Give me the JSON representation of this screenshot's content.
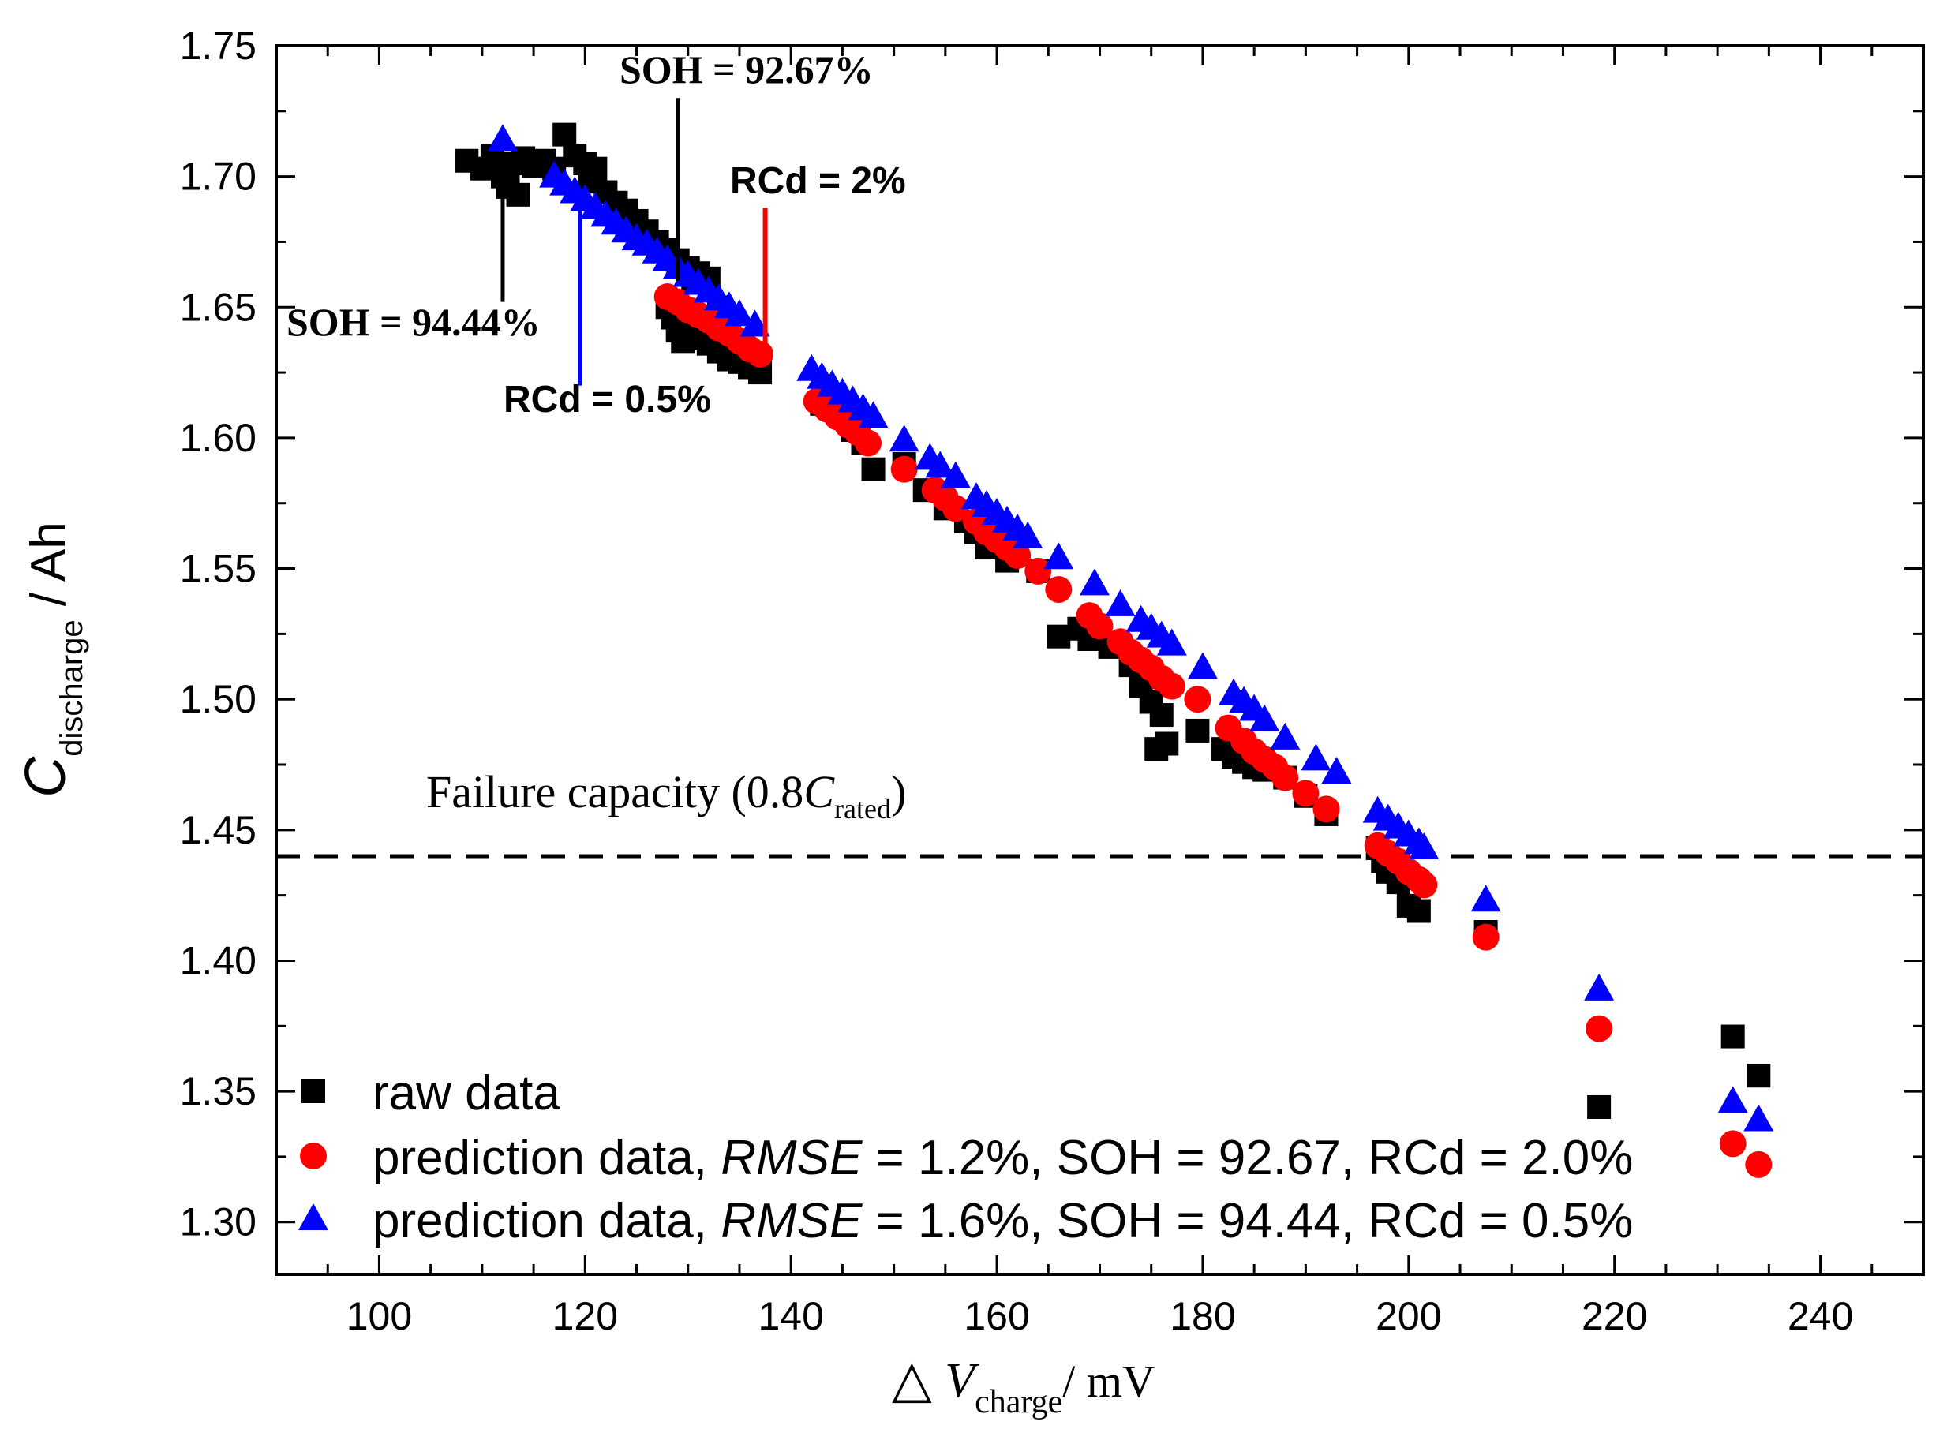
{
  "chart_data": {
    "type": "scatter",
    "xlabel": {
      "prefix": "△",
      "var": "V",
      "sub": "charge",
      "unit": "/  mV"
    },
    "ylabel": {
      "var": "C",
      "sub": "discharge",
      "unit": "/ Ah"
    },
    "xlim": [
      90,
      250
    ],
    "ylim": [
      1.28,
      1.75
    ],
    "xticks": [
      "100",
      "120",
      "140",
      "160",
      "180",
      "200",
      "220",
      "240"
    ],
    "yticks": [
      "1.30",
      "1.35",
      "1.40",
      "1.45",
      "1.50",
      "1.55",
      "1.60",
      "1.65",
      "1.70",
      "1.75"
    ],
    "threshold": {
      "y": 1.44,
      "label_pre": "Failure capacity (0.8",
      "label_var": "C",
      "label_sub": "rated",
      "label_post": ")"
    },
    "series": [
      {
        "name": "raw data",
        "marker": "square",
        "color": "#000000",
        "points": [
          [
            108.5,
            1.706
          ],
          [
            110,
            1.703
          ],
          [
            111,
            1.708
          ],
          [
            112,
            1.7
          ],
          [
            112.5,
            1.696
          ],
          [
            113,
            1.705
          ],
          [
            113.5,
            1.693
          ],
          [
            114,
            1.707
          ],
          [
            115,
            1.704
          ],
          [
            116,
            1.706
          ],
          [
            117,
            1.703
          ],
          [
            118,
            1.716
          ],
          [
            119,
            1.708
          ],
          [
            120,
            1.705
          ],
          [
            120.5,
            1.698
          ],
          [
            121,
            1.703
          ],
          [
            122,
            1.694
          ],
          [
            123,
            1.69
          ],
          [
            124,
            1.687
          ],
          [
            125,
            1.683
          ],
          [
            126,
            1.679
          ],
          [
            127,
            1.675
          ],
          [
            128,
            1.672
          ],
          [
            129,
            1.668
          ],
          [
            130,
            1.665
          ],
          [
            130.5,
            1.66
          ],
          [
            131,
            1.663
          ],
          [
            132,
            1.661
          ],
          [
            133,
            1.65
          ],
          [
            134,
            1.643
          ],
          [
            135,
            1.635
          ],
          [
            136,
            1.628
          ],
          [
            137,
            1.625
          ],
          [
            128,
            1.65
          ],
          [
            128.5,
            1.646
          ],
          [
            129,
            1.641
          ],
          [
            129.5,
            1.637
          ],
          [
            130.5,
            1.64
          ],
          [
            131,
            1.638
          ],
          [
            132,
            1.636
          ],
          [
            133,
            1.633
          ],
          [
            134,
            1.63
          ],
          [
            135,
            1.629
          ],
          [
            136,
            1.627
          ],
          [
            143,
            1.613
          ],
          [
            145,
            1.608
          ],
          [
            146,
            1.603
          ],
          [
            147,
            1.598
          ],
          [
            148,
            1.588
          ],
          [
            151,
            1.59
          ],
          [
            153,
            1.58
          ],
          [
            155,
            1.573
          ],
          [
            157,
            1.568
          ],
          [
            158,
            1.564
          ],
          [
            159,
            1.558
          ],
          [
            161,
            1.553
          ],
          [
            164,
            1.549
          ],
          [
            166,
            1.524
          ],
          [
            168,
            1.527
          ],
          [
            169,
            1.523
          ],
          [
            171,
            1.52
          ],
          [
            173,
            1.513
          ],
          [
            174,
            1.505
          ],
          [
            175,
            1.499
          ],
          [
            176,
            1.494
          ],
          [
            175.5,
            1.481
          ],
          [
            176.5,
            1.483
          ],
          [
            179.5,
            1.488
          ],
          [
            182,
            1.481
          ],
          [
            183,
            1.478
          ],
          [
            184,
            1.476
          ],
          [
            185,
            1.474
          ],
          [
            186,
            1.473
          ],
          [
            188,
            1.47
          ],
          [
            190,
            1.463
          ],
          [
            192,
            1.456
          ],
          [
            197,
            1.443
          ],
          [
            197.5,
            1.438
          ],
          [
            198,
            1.434
          ],
          [
            199,
            1.43
          ],
          [
            200,
            1.421
          ],
          [
            201,
            1.419
          ],
          [
            207.5,
            1.411
          ],
          [
            218.5,
            1.344
          ],
          [
            231.5,
            1.371
          ],
          [
            234,
            1.356
          ]
        ]
      },
      {
        "name": "prediction data, RMSE = 1.2%, SOH = 92.67, RCd = 2.0%",
        "marker": "circle",
        "color": "#ff0000",
        "points": [
          [
            128,
            1.654
          ],
          [
            129,
            1.652
          ],
          [
            130,
            1.649
          ],
          [
            131,
            1.647
          ],
          [
            132,
            1.645
          ],
          [
            133,
            1.642
          ],
          [
            134,
            1.64
          ],
          [
            135,
            1.637
          ],
          [
            136,
            1.634
          ],
          [
            137,
            1.632
          ],
          [
            142.5,
            1.614
          ],
          [
            143.5,
            1.611
          ],
          [
            144.5,
            1.608
          ],
          [
            145.5,
            1.605
          ],
          [
            146.5,
            1.602
          ],
          [
            147.5,
            1.598
          ],
          [
            151,
            1.588
          ],
          [
            154,
            1.58
          ],
          [
            155,
            1.577
          ],
          [
            156,
            1.573
          ],
          [
            158,
            1.568
          ],
          [
            159,
            1.564
          ],
          [
            160,
            1.561
          ],
          [
            161,
            1.558
          ],
          [
            162,
            1.555
          ],
          [
            164,
            1.549
          ],
          [
            166,
            1.542
          ],
          [
            169,
            1.532
          ],
          [
            170,
            1.528
          ],
          [
            172,
            1.522
          ],
          [
            173,
            1.518
          ],
          [
            174,
            1.515
          ],
          [
            175,
            1.512
          ],
          [
            176,
            1.508
          ],
          [
            177,
            1.505
          ],
          [
            179.5,
            1.5
          ],
          [
            182.5,
            1.489
          ],
          [
            184,
            1.484
          ],
          [
            185,
            1.48
          ],
          [
            186,
            1.477
          ],
          [
            187,
            1.474
          ],
          [
            188,
            1.47
          ],
          [
            190,
            1.464
          ],
          [
            192,
            1.458
          ],
          [
            197,
            1.444
          ],
          [
            198,
            1.441
          ],
          [
            199,
            1.438
          ],
          [
            200,
            1.434
          ],
          [
            201,
            1.431
          ],
          [
            201.5,
            1.429
          ],
          [
            207.5,
            1.409
          ],
          [
            218.5,
            1.374
          ],
          [
            231.5,
            1.33
          ],
          [
            234,
            1.322
          ]
        ]
      },
      {
        "name": "prediction data, RMSE = 1.6%, SOH = 94.44, RCd = 0.5%",
        "marker": "triangle",
        "color": "#0000ff",
        "points": [
          [
            112,
            1.714
          ],
          [
            117,
            1.7
          ],
          [
            118,
            1.697
          ],
          [
            119,
            1.694
          ],
          [
            120,
            1.691
          ],
          [
            121,
            1.688
          ],
          [
            122,
            1.685
          ],
          [
            123,
            1.682
          ],
          [
            124,
            1.679
          ],
          [
            125,
            1.676
          ],
          [
            126,
            1.674
          ],
          [
            127,
            1.671
          ],
          [
            128,
            1.668
          ],
          [
            129,
            1.665
          ],
          [
            130,
            1.662
          ],
          [
            131,
            1.659
          ],
          [
            132,
            1.656
          ],
          [
            133,
            1.653
          ],
          [
            134,
            1.65
          ],
          [
            135,
            1.647
          ],
          [
            136.5,
            1.643
          ],
          [
            142,
            1.626
          ],
          [
            143,
            1.623
          ],
          [
            144,
            1.62
          ],
          [
            145,
            1.617
          ],
          [
            146,
            1.614
          ],
          [
            147,
            1.611
          ],
          [
            148,
            1.608
          ],
          [
            151,
            1.599
          ],
          [
            153.5,
            1.592
          ],
          [
            154.5,
            1.589
          ],
          [
            156,
            1.585
          ],
          [
            158,
            1.577
          ],
          [
            159,
            1.574
          ],
          [
            160,
            1.571
          ],
          [
            161,
            1.568
          ],
          [
            162,
            1.565
          ],
          [
            163,
            1.562
          ],
          [
            166,
            1.554
          ],
          [
            169.5,
            1.544
          ],
          [
            172,
            1.536
          ],
          [
            174,
            1.53
          ],
          [
            175,
            1.527
          ],
          [
            176,
            1.524
          ],
          [
            177,
            1.521
          ],
          [
            180,
            1.512
          ],
          [
            183,
            1.502
          ],
          [
            184,
            1.499
          ],
          [
            185,
            1.496
          ],
          [
            186,
            1.492
          ],
          [
            188,
            1.485
          ],
          [
            191,
            1.477
          ],
          [
            193,
            1.472
          ],
          [
            197,
            1.457
          ],
          [
            198,
            1.454
          ],
          [
            199,
            1.451
          ],
          [
            200,
            1.448
          ],
          [
            201,
            1.445
          ],
          [
            201.5,
            1.443
          ],
          [
            207.5,
            1.423
          ],
          [
            218.5,
            1.389
          ],
          [
            231.5,
            1.346
          ],
          [
            234,
            1.339
          ]
        ]
      }
    ],
    "annotations": [
      {
        "text": "SOH = 92.67%",
        "x": 129,
        "y_from": 1.66,
        "y_to": 1.73,
        "color": "#000000"
      },
      {
        "text": "SOH = 94.44%",
        "x": 112,
        "y_from": 1.7,
        "y_to": 1.652,
        "color": "#000000"
      },
      {
        "text": "RCd = 2%",
        "x": 137.5,
        "y_from": 1.633,
        "y_to": 1.688,
        "color": "#ff0000"
      },
      {
        "text": "RCd = 0.5%",
        "x": 119.5,
        "y_from": 1.694,
        "y_to": 1.62,
        "color": "#0000ff"
      }
    ],
    "legend_position": "bottom-left",
    "legend": [
      {
        "marker": "square",
        "color": "#000000",
        "label": "raw data"
      },
      {
        "marker": "circle",
        "color": "#ff0000",
        "pre": "prediction data, ",
        "italic": "RMSE",
        "post": " = 1.2%, SOH = 92.67, RCd = 2.0%"
      },
      {
        "marker": "triangle",
        "color": "#0000ff",
        "pre": "prediction data, ",
        "italic": "RMSE",
        "post": " = 1.6%, SOH = 94.44, RCd = 0.5%"
      }
    ]
  }
}
